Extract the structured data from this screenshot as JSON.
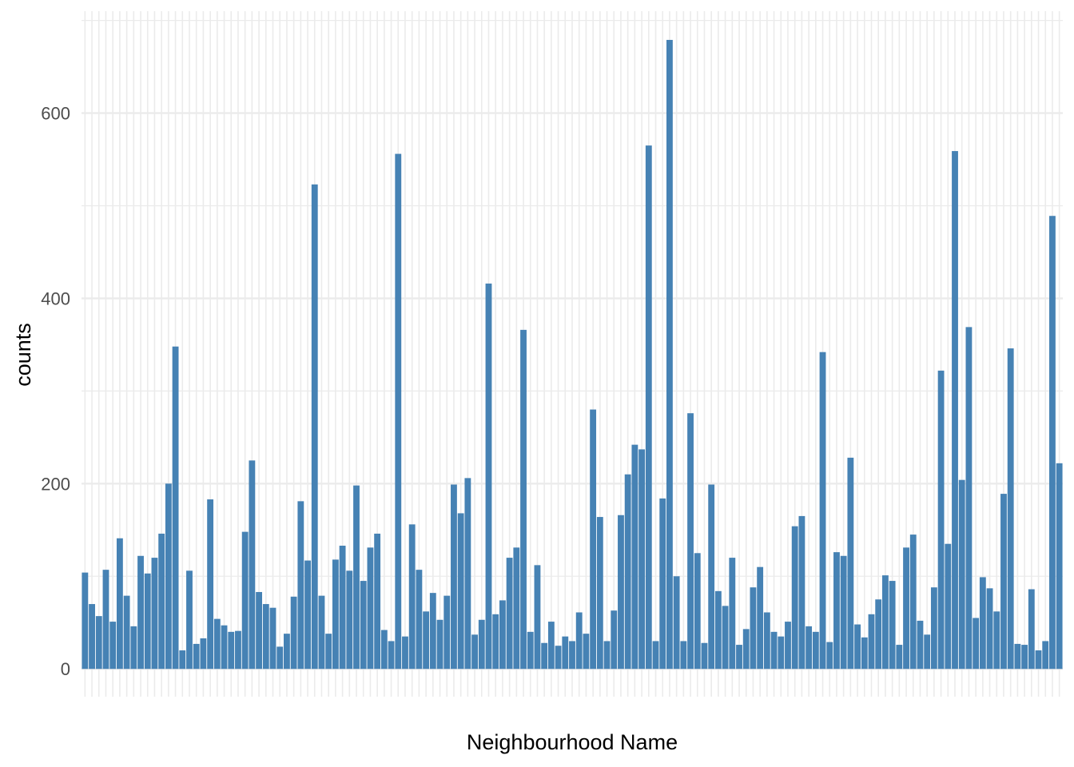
{
  "colors": {
    "bar": "#4682b4",
    "grid": "#ebebeb",
    "tick_text": "#4d4d4d"
  },
  "chart_data": {
    "type": "bar",
    "title": "",
    "xlabel": "Neighbourhood Name",
    "ylabel": "counts",
    "ylim": [
      -30,
      710
    ],
    "y_ticks": [
      0,
      200,
      400,
      600
    ],
    "grid": true,
    "values": [
      104,
      70,
      57,
      107,
      51,
      141,
      79,
      46,
      122,
      103,
      120,
      146,
      200,
      348,
      20,
      106,
      27,
      33,
      183,
      54,
      47,
      40,
      41,
      148,
      225,
      83,
      70,
      66,
      24,
      38,
      78,
      181,
      117,
      523,
      79,
      38,
      118,
      133,
      106,
      198,
      95,
      131,
      146,
      42,
      30,
      556,
      35,
      156,
      107,
      62,
      82,
      53,
      79,
      199,
      168,
      206,
      37,
      53,
      416,
      59,
      74,
      120,
      131,
      366,
      40,
      112,
      28,
      51,
      25,
      35,
      30,
      61,
      38,
      280,
      164,
      30,
      63,
      166,
      210,
      242,
      237,
      565,
      30,
      184,
      679,
      100,
      30,
      276,
      125,
      28,
      199,
      84,
      68,
      120,
      26,
      43,
      88,
      110,
      61,
      40,
      35,
      51,
      154,
      165,
      46,
      40,
      342,
      29,
      126,
      122,
      228,
      48,
      34,
      59,
      75,
      101,
      95,
      26,
      131,
      145,
      52,
      37,
      88,
      322,
      135,
      559,
      204,
      369,
      55,
      99,
      87,
      62,
      189,
      346,
      27,
      26,
      86,
      20,
      30,
      489,
      222
    ]
  }
}
